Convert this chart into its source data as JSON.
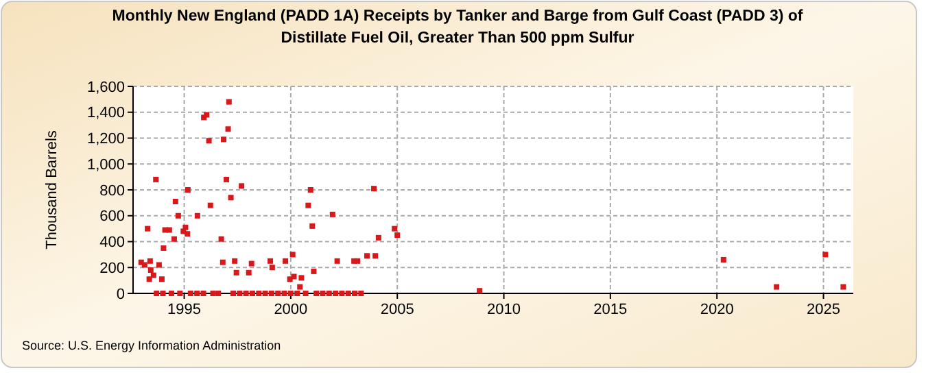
{
  "chart_data": {
    "type": "scatter",
    "title": "Monthly New England (PADD 1A) Receipts by Tanker and Barge from Gulf Coast (PADD 3) of Distillate Fuel Oil, Greater Than 500 ppm Sulfur",
    "ylabel": "Thousand Barrels",
    "annotations": [
      "Source: U.S. Energy Information Administration"
    ],
    "series": [
      {
        "color": "#d7191c",
        "x": [
          1992.98,
          1993.14,
          1993.28,
          1993.4,
          1993.43,
          1993.36,
          1993.56,
          1993.67,
          1993.82,
          1993.95,
          1994.03,
          1994.1,
          1994.3,
          1994.53,
          1994.59,
          1994.72,
          1994.96,
          1995.06,
          1995.15,
          1995.17,
          1995.62,
          1995.92,
          1996.05,
          1996.16,
          1996.23,
          1996.74,
          1996.81,
          1996.85,
          1996.98,
          1997.06,
          1997.1,
          1997.19,
          1997.37,
          1997.45,
          1997.69,
          1998.03,
          1998.16,
          1999.04,
          1999.13,
          1999.75,
          1999.96,
          2000.09,
          2000.15,
          2000.43,
          2000.5,
          2000.82,
          2000.93,
          2001.01,
          2001.08,
          2001.96,
          2002.18,
          2002.97,
          2003.13,
          2003.58,
          2003.9,
          2003.97,
          2004.12,
          2004.87,
          2005.0,
          2008.86,
          2020.31,
          2022.8,
          2025.09,
          2025.93,
          1993.7,
          1994.0,
          1994.4,
          1994.8,
          1995.3,
          1995.6,
          1995.9,
          1996.35,
          1996.6,
          1997.3,
          1997.6,
          1997.9,
          1998.2,
          1998.5,
          1998.8,
          1999.1,
          1999.4,
          1999.7,
          2000.0,
          2000.3,
          2000.7,
          2001.2,
          2001.5,
          2001.8,
          2002.1,
          2002.4,
          2002.7,
          2003.0,
          2003.3
        ],
        "values": [
          240,
          220,
          500,
          250,
          180,
          110,
          140,
          880,
          220,
          110,
          350,
          490,
          490,
          420,
          710,
          600,
          480,
          510,
          460,
          800,
          600,
          1360,
          1380,
          1180,
          680,
          420,
          240,
          1190,
          880,
          1270,
          1480,
          740,
          250,
          160,
          830,
          160,
          230,
          250,
          200,
          250,
          110,
          300,
          130,
          50,
          120,
          680,
          800,
          520,
          170,
          610,
          250,
          250,
          250,
          290,
          810,
          290,
          430,
          500,
          450,
          20,
          260,
          50,
          300,
          50,
          0,
          0,
          0,
          0,
          0,
          0,
          0,
          0,
          0,
          0,
          0,
          0,
          0,
          0,
          0,
          0,
          0,
          0,
          0,
          0,
          0,
          0,
          0,
          0,
          0,
          0,
          0,
          0,
          0
        ]
      }
    ],
    "xlim": [
      1992.6,
      2026.4
    ],
    "xticks": [
      1995,
      2000,
      2005,
      2010,
      2015,
      2020,
      2025
    ],
    "ylim": [
      0,
      1600
    ],
    "yticks": [
      0,
      200,
      400,
      600,
      800,
      {
        "value": 1000,
        "label": "1,000"
      },
      {
        "value": 1200,
        "label": "1,200"
      },
      {
        "value": 1400,
        "label": "1,400"
      },
      {
        "value": 1600,
        "label": "1,600"
      }
    ],
    "grid": true,
    "marker": "square"
  }
}
